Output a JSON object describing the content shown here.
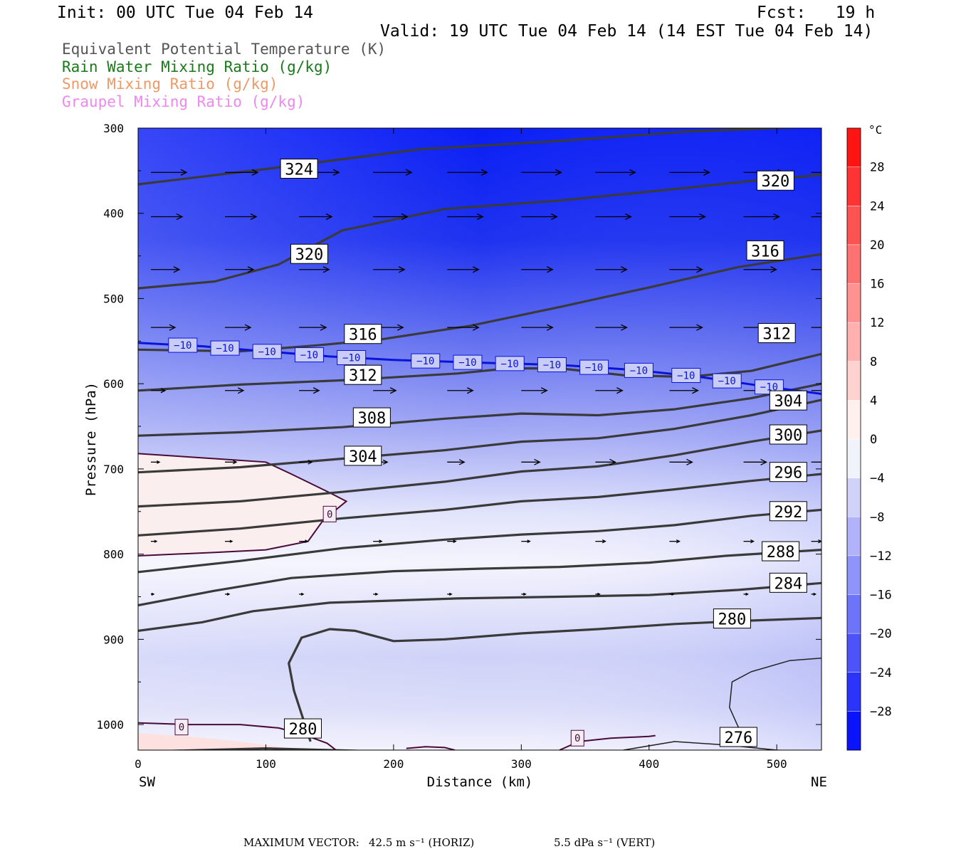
{
  "header": {
    "init": "Init: 00 UTC Tue 04 Feb 14",
    "fcst": "Fcst:   19 h",
    "valid": "Valid: 19 UTC Tue 04 Feb 14 (14 EST Tue 04 Feb 14)"
  },
  "legend": [
    {
      "label": "Equivalent Potential Temperature (K)",
      "color": "#555555"
    },
    {
      "label": "Rain Water Mixing Ratio (g/kg)",
      "color": "#1a7a1a"
    },
    {
      "label": "Snow Mixing Ratio (g/kg)",
      "color": "#ee9966"
    },
    {
      "label": "Graupel Mixing Ratio (g/kg)",
      "color": "#ee88ee"
    }
  ],
  "chart_data": {
    "type": "contour",
    "xlabel": "Distance (km)",
    "ylabel": "Pressure (hPa)",
    "xlim": [
      0,
      535
    ],
    "ylim": [
      1030,
      300
    ],
    "xticks": [
      "0",
      "100",
      "200",
      "300",
      "400",
      "500"
    ],
    "yticks": [
      "300",
      "400",
      "500",
      "600",
      "700",
      "800",
      "900",
      "1000"
    ],
    "x_end_left": "SW",
    "x_end_right": "NE",
    "colorbar": {
      "unit": "°C",
      "tick_labels": [
        "28",
        "24",
        "20",
        "16",
        "12",
        "8",
        "4",
        "0",
        "−4",
        "−8",
        "−12",
        "−16",
        "−20",
        "−24",
        "−28"
      ],
      "range": [
        -32,
        32
      ],
      "step": 4
    },
    "theta_e_contours": [
      {
        "label": "324",
        "points": [
          [
            0,
            366
          ],
          [
            100,
            348
          ],
          [
            220,
            325
          ],
          [
            330,
            315
          ],
          [
            430,
            304
          ],
          [
            535,
            298
          ]
        ]
      },
      {
        "label": "320",
        "points": [
          [
            0,
            488
          ],
          [
            60,
            480
          ],
          [
            110,
            460
          ],
          [
            160,
            420
          ],
          [
            240,
            395
          ],
          [
            330,
            385
          ],
          [
            430,
            370
          ],
          [
            480,
            362
          ],
          [
            535,
            355
          ]
        ]
      },
      {
        "label": "316",
        "points": [
          [
            0,
            560
          ],
          [
            80,
            562
          ],
          [
            140,
            555
          ],
          [
            190,
            548
          ],
          [
            260,
            532
          ],
          [
            330,
            510
          ],
          [
            400,
            487
          ],
          [
            470,
            463
          ],
          [
            535,
            448
          ]
        ]
      },
      {
        "label": "312",
        "points": [
          [
            0,
            608
          ],
          [
            80,
            601
          ],
          [
            160,
            596
          ],
          [
            250,
            588
          ],
          [
            290,
            582
          ],
          [
            330,
            582
          ],
          [
            380,
            590
          ],
          [
            430,
            592
          ],
          [
            480,
            585
          ],
          [
            535,
            565
          ]
        ]
      },
      {
        "label": "308",
        "points": [
          [
            0,
            661
          ],
          [
            80,
            657
          ],
          [
            160,
            651
          ],
          [
            240,
            641
          ],
          [
            300,
            635
          ],
          [
            360,
            637
          ],
          [
            420,
            630
          ],
          [
            480,
            617
          ],
          [
            535,
            600
          ]
        ]
      },
      {
        "label": "304",
        "points": [
          [
            0,
            704
          ],
          [
            80,
            698
          ],
          [
            160,
            688
          ],
          [
            240,
            678
          ],
          [
            300,
            668
          ],
          [
            360,
            664
          ],
          [
            420,
            653
          ],
          [
            480,
            637
          ],
          [
            535,
            619
          ]
        ]
      },
      {
        "label": "300",
        "points": [
          [
            0,
            744
          ],
          [
            80,
            738
          ],
          [
            160,
            727
          ],
          [
            240,
            715
          ],
          [
            300,
            703
          ],
          [
            360,
            697
          ],
          [
            420,
            684
          ],
          [
            480,
            668
          ],
          [
            535,
            655
          ]
        ]
      },
      {
        "label": "296",
        "points": [
          [
            0,
            778
          ],
          [
            80,
            770
          ],
          [
            160,
            758
          ],
          [
            240,
            748
          ],
          [
            300,
            738
          ],
          [
            360,
            733
          ],
          [
            420,
            724
          ],
          [
            480,
            714
          ],
          [
            535,
            706
          ]
        ]
      },
      {
        "label": "292",
        "points": [
          [
            0,
            821
          ],
          [
            80,
            808
          ],
          [
            160,
            793
          ],
          [
            240,
            783
          ],
          [
            300,
            777
          ],
          [
            360,
            773
          ],
          [
            420,
            766
          ],
          [
            480,
            755
          ],
          [
            535,
            748
          ]
        ]
      },
      {
        "label": "288",
        "points": [
          [
            0,
            860
          ],
          [
            60,
            843
          ],
          [
            120,
            828
          ],
          [
            200,
            820
          ],
          [
            270,
            817
          ],
          [
            330,
            815
          ],
          [
            400,
            810
          ],
          [
            460,
            802
          ],
          [
            535,
            795
          ]
        ]
      },
      {
        "label": "284",
        "points": [
          [
            0,
            890
          ],
          [
            50,
            880
          ],
          [
            90,
            867
          ],
          [
            150,
            857
          ],
          [
            250,
            852
          ],
          [
            330,
            850
          ],
          [
            400,
            848
          ],
          [
            470,
            842
          ],
          [
            535,
            834
          ]
        ]
      },
      {
        "label": "280",
        "points": [
          [
            0,
            1032
          ],
          [
            50,
            1030
          ],
          [
            100,
            1028
          ],
          [
            150,
            1030
          ],
          [
            200,
            1032
          ]
        ]
      },
      {
        "label": "280",
        "points": [
          [
            135,
            1020
          ],
          [
            122,
            960
          ],
          [
            118,
            928
          ],
          [
            128,
            898
          ],
          [
            150,
            888
          ],
          [
            170,
            890
          ],
          [
            200,
            902
          ],
          [
            240,
            900
          ],
          [
            300,
            893
          ],
          [
            360,
            888
          ],
          [
            420,
            882
          ],
          [
            480,
            878
          ],
          [
            535,
            875
          ]
        ]
      },
      {
        "label": "276",
        "points": [
          [
            475,
            1020
          ],
          [
            463,
            980
          ],
          [
            465,
            950
          ],
          [
            480,
            938
          ],
          [
            510,
            925
          ],
          [
            535,
            922
          ]
        ]
      },
      {
        "label": "276",
        "points": [
          [
            380,
            1030
          ],
          [
            420,
            1020
          ],
          [
            460,
            1024
          ],
          [
            500,
            1030
          ],
          [
            535,
            1032
          ]
        ]
      }
    ],
    "isotherm_minus10": {
      "label": "−10",
      "points": [
        [
          0,
          552
        ],
        [
          50,
          556
        ],
        [
          100,
          562
        ],
        [
          150,
          568
        ],
        [
          200,
          572
        ],
        [
          260,
          575
        ],
        [
          330,
          578
        ],
        [
          390,
          584
        ],
        [
          440,
          592
        ],
        [
          490,
          603
        ],
        [
          535,
          612
        ]
      ]
    },
    "zero_isotherm": {
      "label": "0",
      "regions": [
        [
          [
            0,
            682
          ],
          [
            60,
            688
          ],
          [
            100,
            692
          ],
          [
            120,
            706
          ],
          [
            150,
            728
          ],
          [
            163,
            738
          ],
          [
            145,
            760
          ],
          [
            133,
            785
          ],
          [
            100,
            795
          ],
          [
            60,
            798
          ],
          [
            0,
            802
          ]
        ],
        [
          [
            0,
            998
          ],
          [
            40,
            1000
          ],
          [
            80,
            1000
          ],
          [
            110,
            1004
          ],
          [
            130,
            1012
          ],
          [
            148,
            1022
          ],
          [
            155,
            1030
          ]
        ],
        [
          [
            330,
            1030
          ],
          [
            345,
            1020
          ],
          [
            370,
            1016
          ],
          [
            400,
            1014
          ],
          [
            405,
            1013
          ]
        ],
        [
          [
            210,
            1028
          ],
          [
            225,
            1026
          ],
          [
            240,
            1027
          ],
          [
            248,
            1030
          ]
        ]
      ]
    },
    "label_positions": [
      {
        "text": "324",
        "x": 126,
        "p": 348
      },
      {
        "text": "320",
        "x": 134,
        "p": 448
      },
      {
        "text": "320",
        "x": 499,
        "p": 362
      },
      {
        "text": "316",
        "x": 176,
        "p": 542
      },
      {
        "text": "316",
        "x": 491,
        "p": 444
      },
      {
        "text": "312",
        "x": 176,
        "p": 590
      },
      {
        "text": "312",
        "x": 500,
        "p": 541
      },
      {
        "text": "308",
        "x": 183,
        "p": 640
      },
      {
        "text": "304",
        "x": 176,
        "p": 685
      },
      {
        "text": "304",
        "x": 509,
        "p": 620
      },
      {
        "text": "300",
        "x": 509,
        "p": 660
      },
      {
        "text": "296",
        "x": 509,
        "p": 704
      },
      {
        "text": "292",
        "x": 509,
        "p": 750
      },
      {
        "text": "288",
        "x": 503,
        "p": 797
      },
      {
        "text": "284",
        "x": 509,
        "p": 834
      },
      {
        "text": "280",
        "x": 465,
        "p": 876
      },
      {
        "text": "280",
        "x": 129,
        "p": 1005
      },
      {
        "text": "276",
        "x": 470,
        "p": 1015
      }
    ],
    "minus10_label_x": [
      35,
      68,
      101,
      134,
      167,
      225,
      258,
      291,
      324,
      357,
      392,
      429,
      461,
      494
    ],
    "zero_label_positions": [
      [
        150,
        753
      ],
      [
        34,
        1003
      ],
      [
        344,
        1016
      ]
    ],
    "wind_vector_rows": [
      {
        "p": 352,
        "len": [
          50,
          46,
          56,
          54,
          56,
          56,
          56,
          56,
          56,
          56
        ]
      },
      {
        "p": 404,
        "len": [
          44,
          44,
          46,
          48,
          50,
          50,
          50,
          50,
          50,
          48
        ]
      },
      {
        "p": 466,
        "len": [
          40,
          40,
          42,
          44,
          44,
          44,
          44,
          46,
          46,
          46
        ]
      },
      {
        "p": 534,
        "len": [
          34,
          36,
          38,
          42,
          44,
          44,
          44,
          46,
          46,
          44
        ]
      },
      {
        "p": 608,
        "len": [
          20,
          26,
          28,
          32,
          36,
          36,
          38,
          40,
          40,
          40
        ]
      },
      {
        "p": 692,
        "len": [
          12,
          16,
          18,
          20,
          24,
          26,
          28,
          32,
          32,
          32
        ]
      },
      {
        "p": 785,
        "len": [
          8,
          10,
          12,
          12,
          12,
          12,
          14,
          14,
          14,
          14
        ]
      },
      {
        "p": 847,
        "len": [
          4,
          6,
          6,
          6,
          6,
          6,
          6,
          6,
          6,
          6
        ]
      }
    ],
    "vector_columns_km": [
      10,
      68,
      126,
      184,
      242,
      300,
      358,
      416,
      474,
      527
    ],
    "max_vector_text": {
      "label": "MAXIMUM VECTOR:",
      "horiz": "42.5 m s⁻¹ (HORIZ)",
      "vert": "5.5 dPa s⁻¹ (VERT)"
    }
  }
}
